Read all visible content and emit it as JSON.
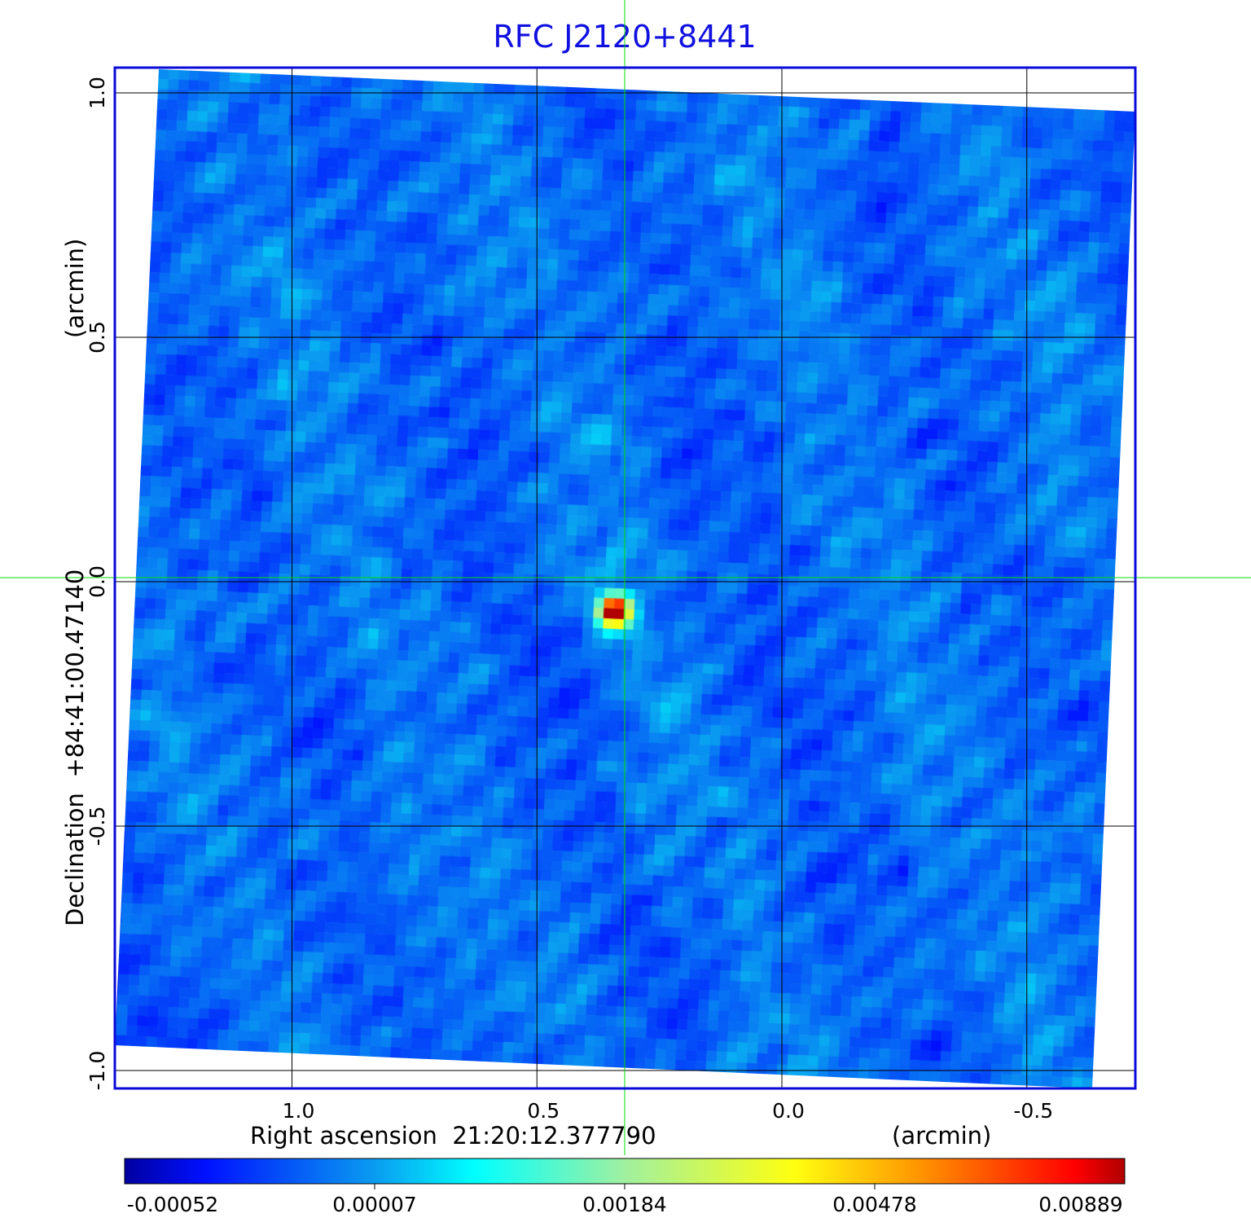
{
  "chart_data": {
    "type": "heatmap",
    "title": "RFC J2120+8441",
    "xlabel": "Right ascension  21:20:12.377790",
    "xunit": "(arcmin)",
    "ylabel": "Declination  +84:41:00.47140",
    "yunit": "(arcmin)",
    "xticks": [
      "1.0",
      "0.5",
      "0.0",
      "-0.5"
    ],
    "xtick_values": [
      1.0,
      0.5,
      0.0,
      -0.5
    ],
    "yticks": [
      "1.0",
      "0.5",
      "0.0",
      "-0.5",
      "-1.0"
    ],
    "ytick_values": [
      1.0,
      0.5,
      0.0,
      -0.5,
      -1.0
    ],
    "xlim": [
      1.34,
      -0.72
    ],
    "ylim": [
      -1.05,
      1.05
    ],
    "grid": true,
    "crosshair": {
      "x": 0.32,
      "y": 0.0,
      "color": "#00dd00"
    },
    "source_peak": {
      "x": 0.32,
      "y": -0.003
    },
    "colorbar": {
      "ticks": [
        "-0.00052",
        "0.00007",
        "0.00184",
        "0.00478",
        "0.00889"
      ],
      "colormap": "jet",
      "range": [
        -0.00052,
        0.00889
      ]
    },
    "title_color": "#1010e0",
    "frame_color": "#0a0ad8"
  }
}
